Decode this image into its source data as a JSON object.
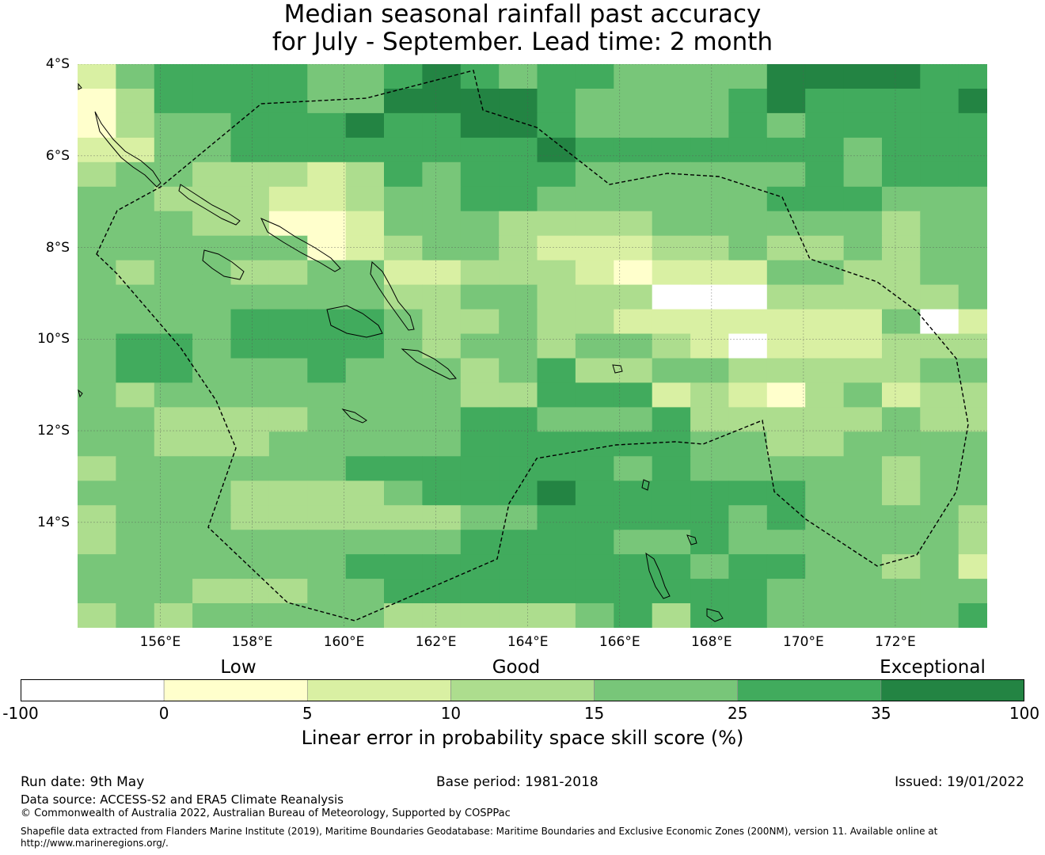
{
  "title": {
    "line1": "Median seasonal rainfall past accuracy",
    "line2": "for July - September. Lead time: 2 month"
  },
  "map": {
    "lon_range": [
      154.2,
      174.0
    ],
    "lat_range": [
      -16.3,
      -4.0
    ],
    "lat_labels": [
      "4°S",
      "6°S",
      "8°S",
      "10°S",
      "12°S",
      "14°S"
    ],
    "lon_labels": [
      "156°E",
      "158°E",
      "160°E",
      "162°E",
      "164°E",
      "166°E",
      "168°E",
      "170°E",
      "172°E"
    ],
    "boundary_style": "dashed",
    "grid": true
  },
  "legend": {
    "categories": [
      "Low",
      "Good",
      "Exceptional"
    ],
    "ticks": [
      "-100",
      "0",
      "5",
      "10",
      "15",
      "25",
      "35",
      "100"
    ],
    "colors": [
      "#ffffff",
      "#ffffcc",
      "#d9f0a3",
      "#addd8e",
      "#78c679",
      "#41ab5d",
      "#238443"
    ],
    "label": "Linear error in probability space skill score (%)"
  },
  "footer": {
    "run_date": "Run date: 9th May",
    "base_period": "Base period: 1981-2018",
    "issued": "Issued: 19/01/2022",
    "data_source": "Data source: ACCESS-S2 and ERA5 Climate Reanalysis",
    "copyright": "© Commonwealth of Australia 2022, Australian Bureau of Meteorology, Supported by COSPPac",
    "shapefile_line1": "Shapefile data extracted from Flanders Marine Institute (2019), Maritime Boundaries Geodatabase: Maritime Boundaries and Exclusive Economic Zones (200NM), version 11. Available online at",
    "shapefile_line2": "http://www.marineregions.org/."
  }
}
